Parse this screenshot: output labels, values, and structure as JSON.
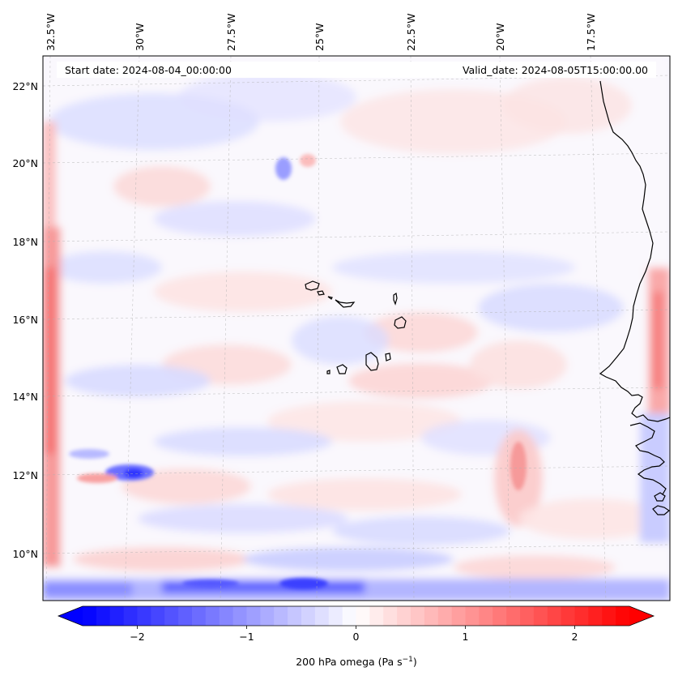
{
  "header": {
    "start_date": "Start date: 2024-08-04_00:00:00",
    "valid_date": "Valid_date: 2024-08-05T15:00:00.00"
  },
  "map": {
    "longitude_labels": [
      "32.5°W",
      "30°W",
      "27.5°W",
      "25°W",
      "22.5°W",
      "20°W",
      "17.5°W"
    ],
    "latitude_labels": [
      "22°N",
      "20°N",
      "18°N",
      "16°N",
      "14°N",
      "12°N",
      "10°N"
    ],
    "field": "200 hPa omega",
    "extent": {
      "lon_min": -33.0,
      "lon_max": -15.8,
      "lat_min": 8.8,
      "lat_max": 22.8
    },
    "gridlines": true,
    "coastline_color": "#000000"
  },
  "colorbar": {
    "label": "200 hPa omega (Pa s",
    "label_sup": "−1",
    "label_end": ")",
    "tick_labels": [
      "−2",
      "−1",
      "0",
      "1",
      "2"
    ],
    "tick_values": [
      -2,
      -1,
      0,
      1,
      2
    ],
    "range": [
      -2.5,
      2.5
    ],
    "extend": "both",
    "colormap": "bwr",
    "low_color": "#0000ff",
    "mid_color": "#ffffff",
    "high_color": "#ff0000"
  }
}
